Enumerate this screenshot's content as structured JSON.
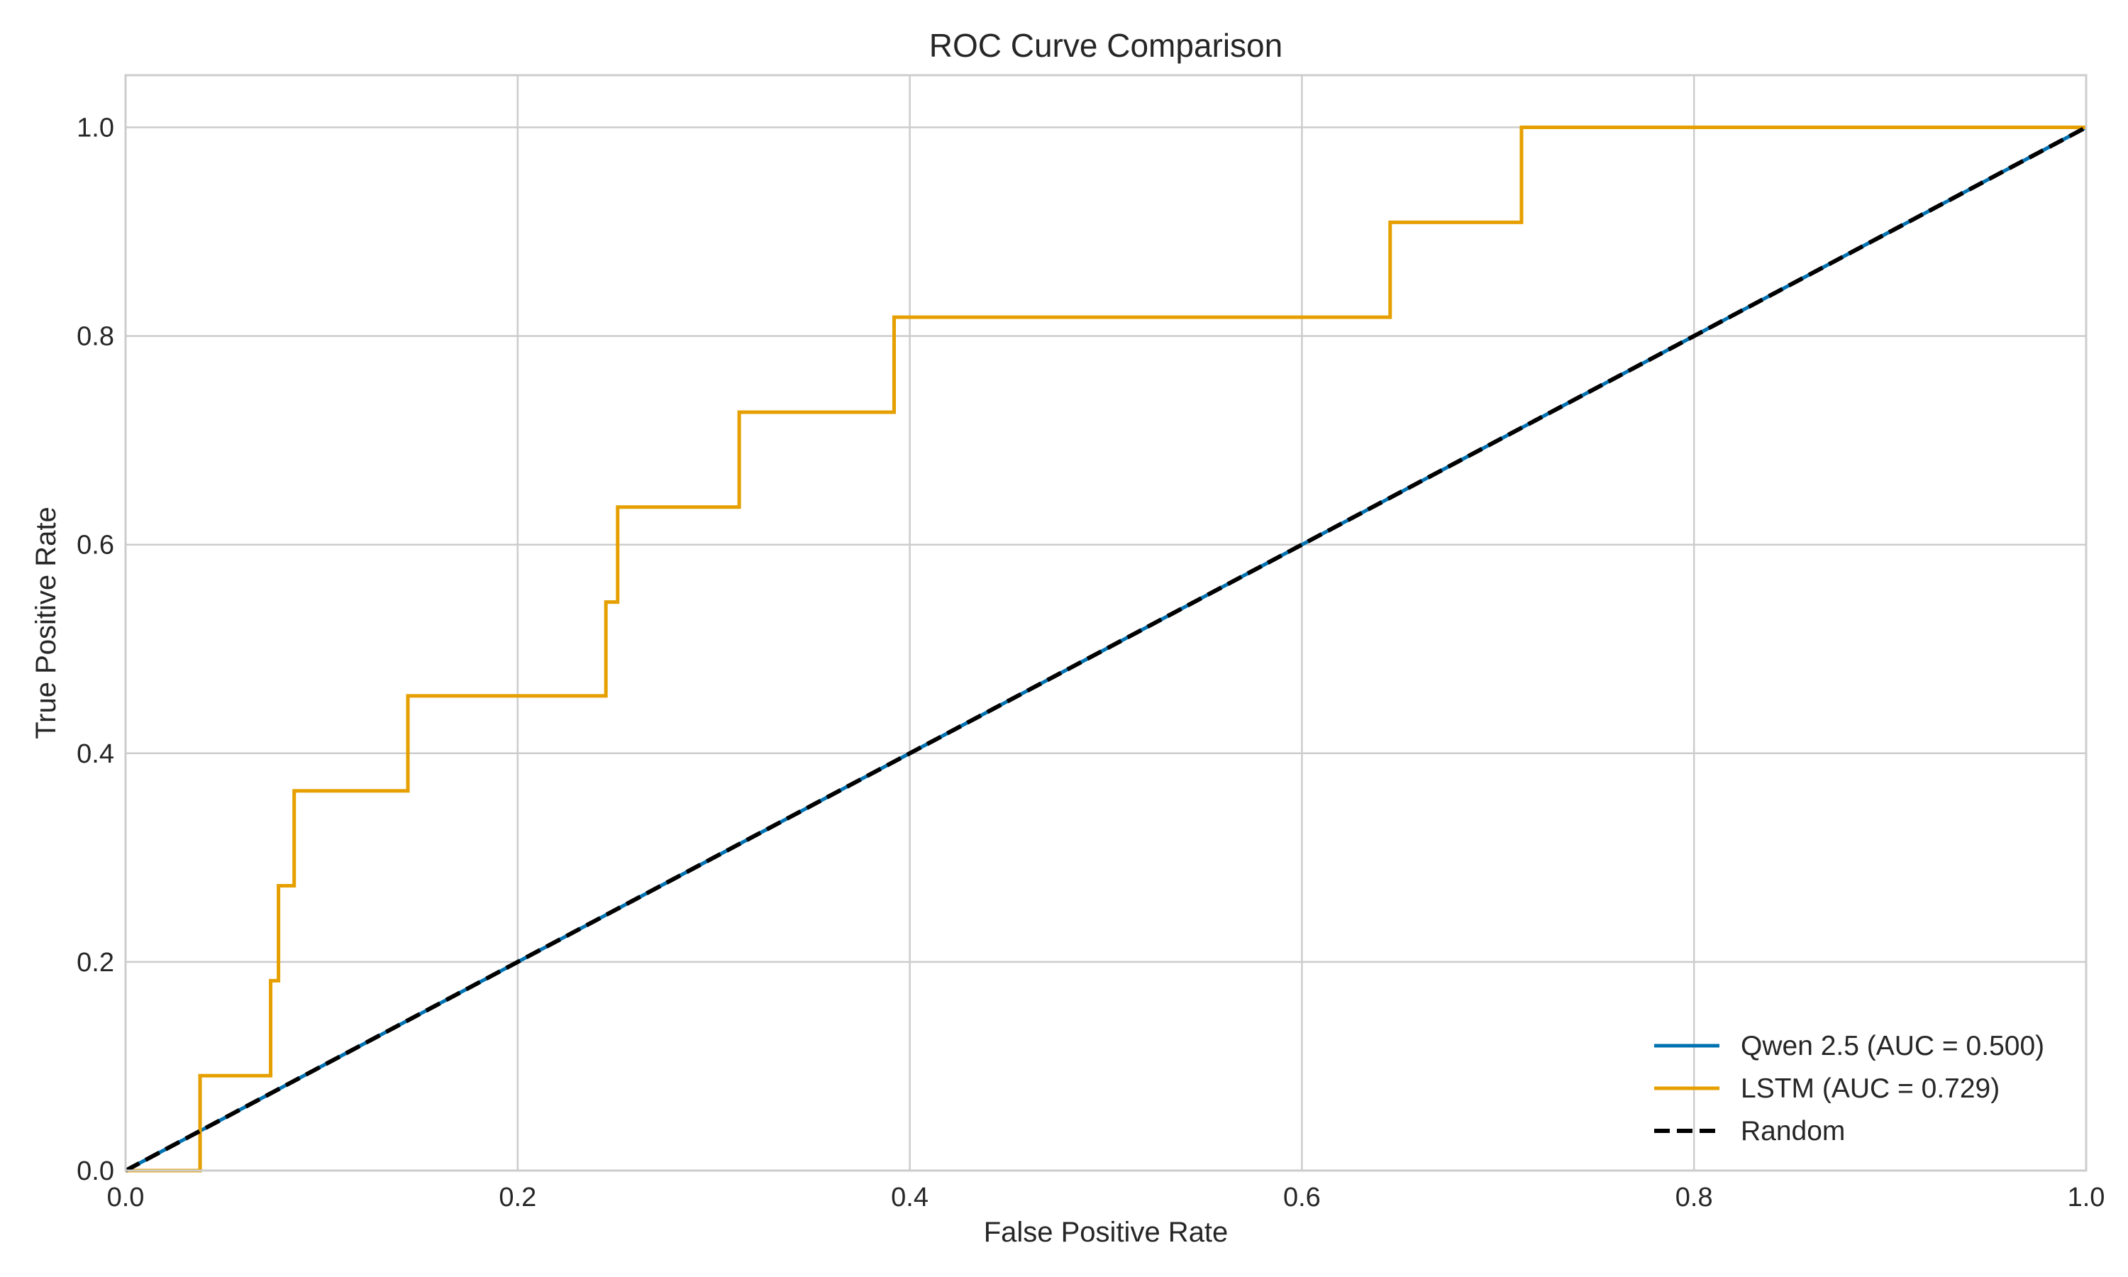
{
  "chart_data": {
    "type": "line",
    "title": "ROC Curve Comparison",
    "xlabel": "False Positive Rate",
    "ylabel": "True Positive Rate",
    "xlim": [
      0.0,
      1.0
    ],
    "ylim": [
      0.0,
      1.05
    ],
    "x_ticks": [
      0.0,
      0.2,
      0.4,
      0.6,
      0.8,
      1.0
    ],
    "y_ticks": [
      0.0,
      0.2,
      0.4,
      0.6,
      0.8,
      1.0
    ],
    "x_tick_labels": [
      "0.0",
      "0.2",
      "0.4",
      "0.6",
      "0.8",
      "1.0"
    ],
    "y_tick_labels": [
      "0.0",
      "0.2",
      "0.4",
      "0.6",
      "0.8",
      "1.0"
    ],
    "grid": true,
    "legend_position": "bottom-right",
    "series": [
      {
        "name": "Qwen 2.5 (AUC = 0.500)",
        "color": "#0072B2",
        "style": "solid",
        "x": [
          0.0,
          1.0
        ],
        "y": [
          0.0,
          1.0
        ]
      },
      {
        "name": "LSTM (AUC = 0.729)",
        "color": "#E69F00",
        "style": "solid",
        "x": [
          0.0,
          0.038,
          0.038,
          0.074,
          0.074,
          0.078,
          0.078,
          0.082,
          0.082,
          0.086,
          0.086,
          0.144,
          0.144,
          0.245,
          0.245,
          0.251,
          0.251,
          0.313,
          0.313,
          0.392,
          0.392,
          0.645,
          0.645,
          0.712,
          0.712,
          1.0
        ],
        "y": [
          0.0,
          0.0,
          0.091,
          0.091,
          0.182,
          0.182,
          0.273,
          0.273,
          0.273,
          0.273,
          0.364,
          0.364,
          0.455,
          0.455,
          0.545,
          0.545,
          0.636,
          0.636,
          0.727,
          0.727,
          0.818,
          0.818,
          0.909,
          0.909,
          1.0,
          1.0
        ]
      },
      {
        "name": "Random",
        "color": "#000000",
        "style": "dashed",
        "x": [
          0.0,
          1.0
        ],
        "y": [
          0.0,
          1.0
        ]
      }
    ]
  }
}
